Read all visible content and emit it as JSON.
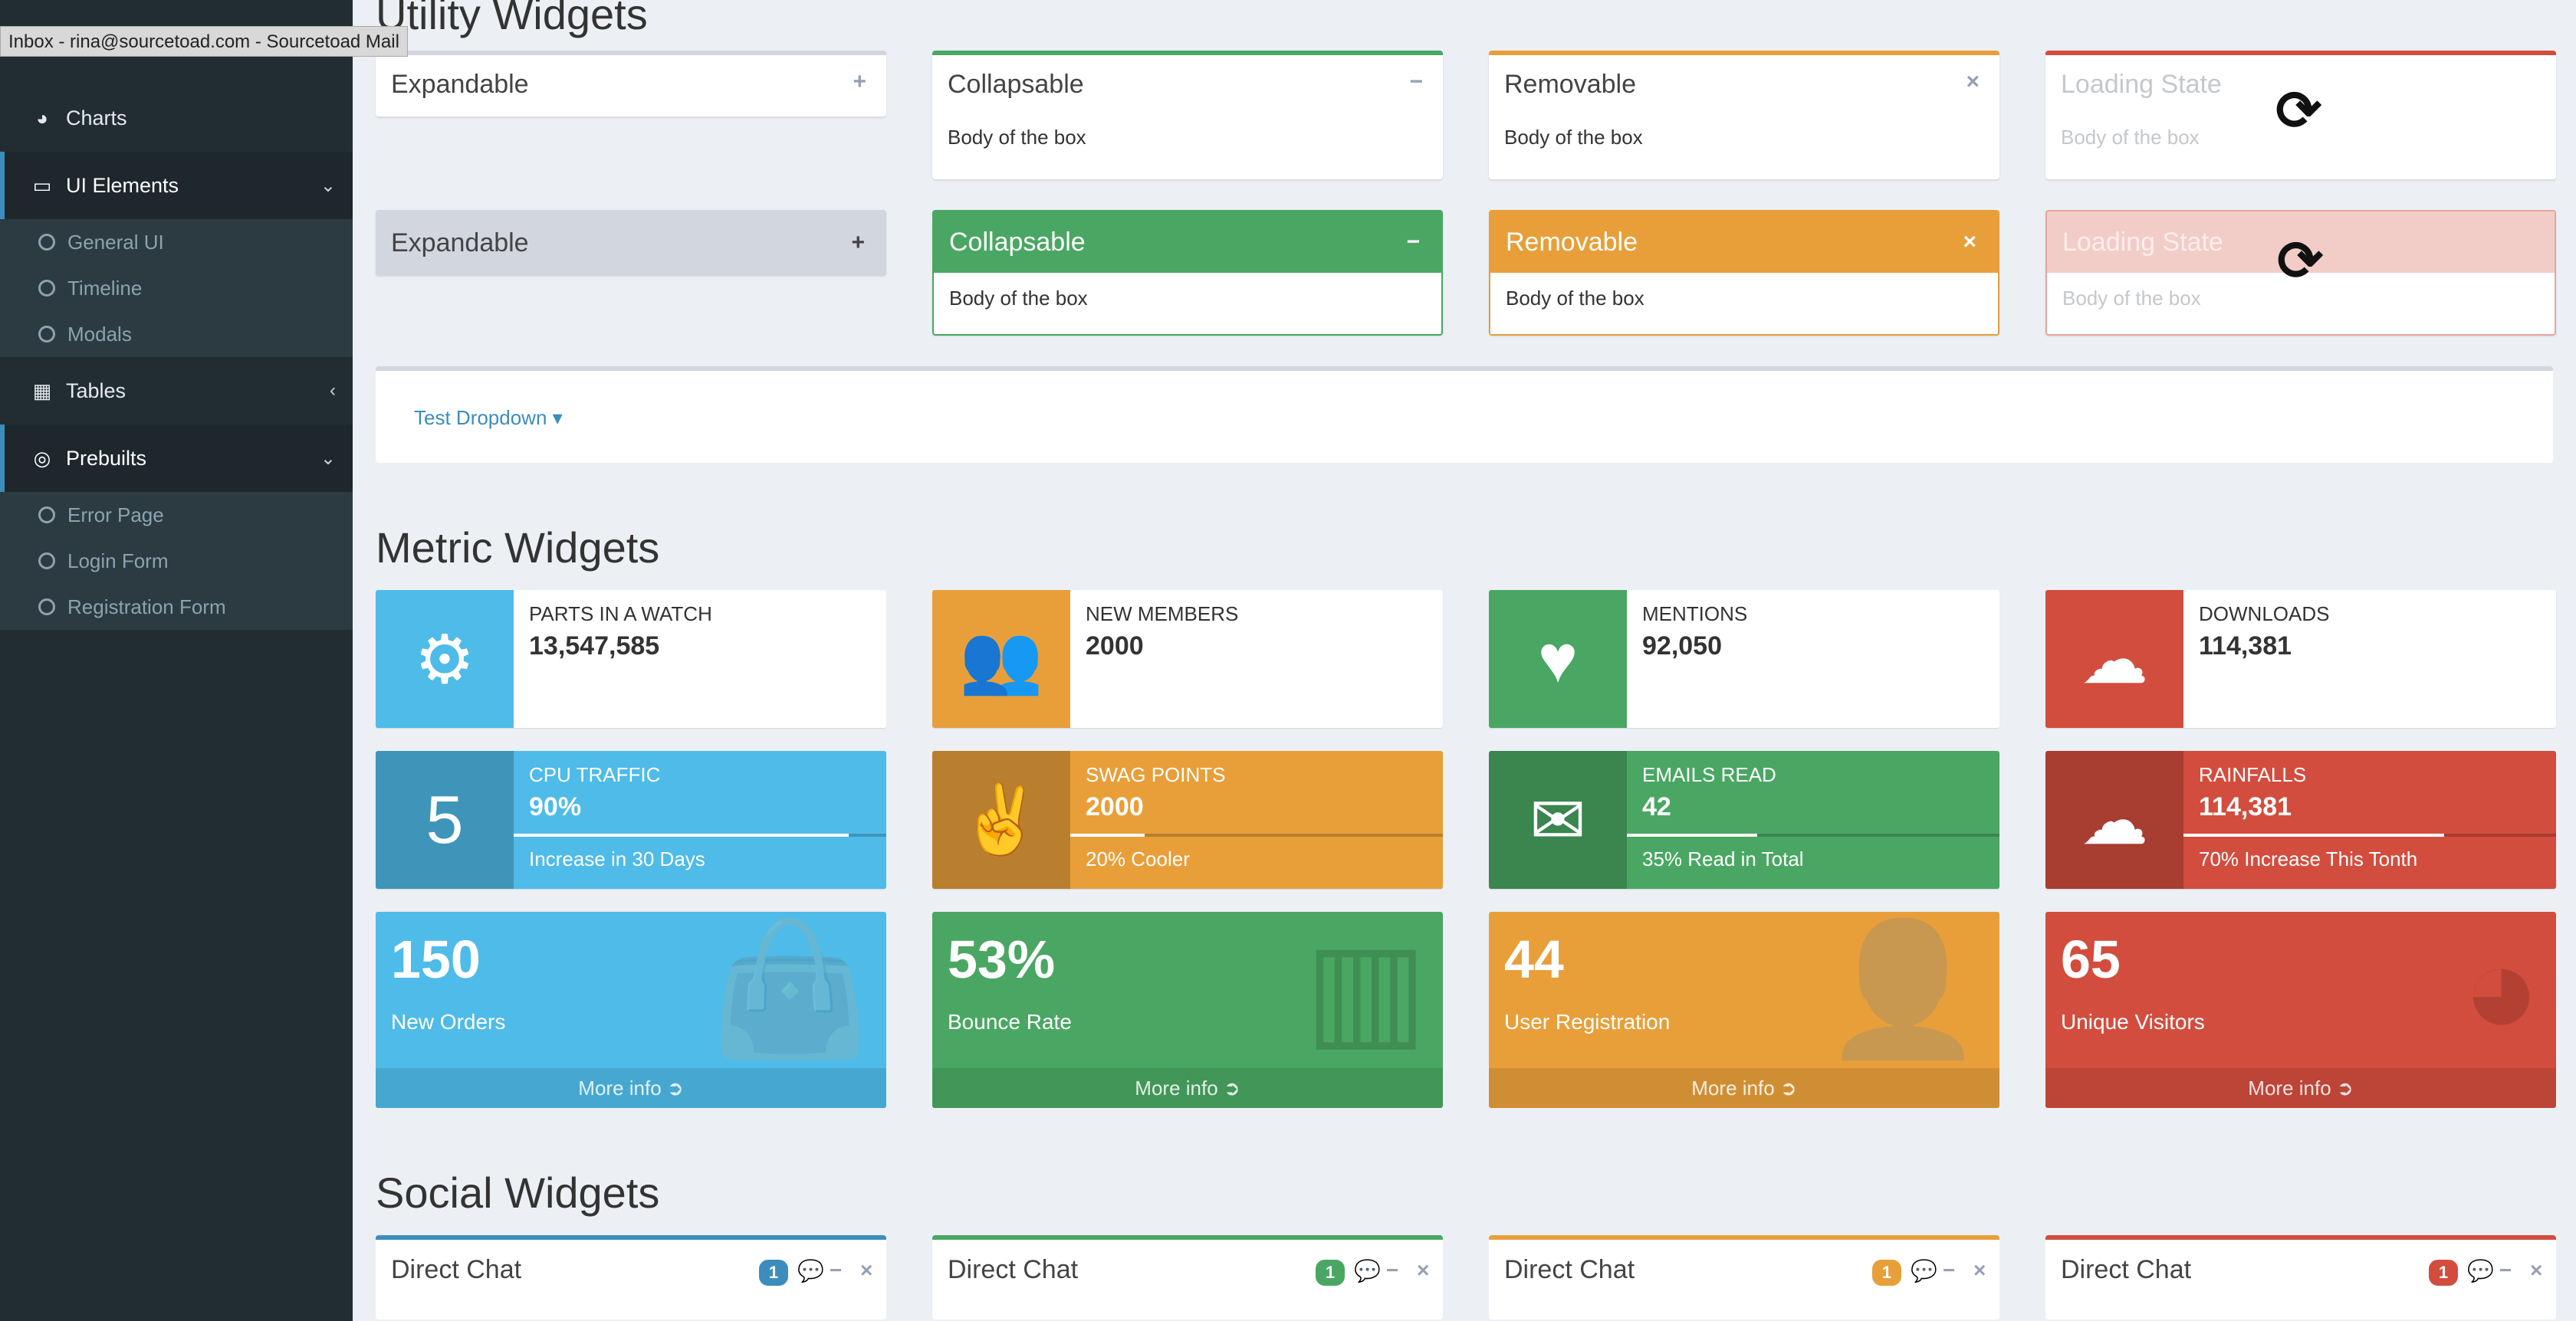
{
  "tooltip": "Inbox - rina@sourcetoad.com - Sourcetoad Mail",
  "sidebar": {
    "charts": "Charts",
    "ui_elements": "UI Elements",
    "ui_sub": [
      "General UI",
      "Timeline",
      "Modals"
    ],
    "tables": "Tables",
    "prebuilts": "Prebuilts",
    "prebuilt_sub": [
      "Error Page",
      "Login Form",
      "Registration Form"
    ]
  },
  "sections": {
    "utility": "Utility Widgets",
    "metric": "Metric Widgets",
    "social": "Social Widgets"
  },
  "utility": {
    "expandable": "Expandable",
    "collapsable": "Collapsable",
    "removable": "Removable",
    "loading": "Loading State",
    "body": "Body of the box",
    "dropdown": "Test Dropdown"
  },
  "colors": {
    "aqua": "#4fbbe8",
    "green": "#4aa763",
    "orange": "#e89f3a",
    "red": "#d24d3e",
    "blue": "#3c8dbc"
  },
  "info_boxes": [
    {
      "label": "PARTS IN A WATCH",
      "value": "13,547,585",
      "icon": "gear-icon"
    },
    {
      "label": "NEW MEMBERS",
      "value": "2000",
      "icon": "users-icon"
    },
    {
      "label": "MENTIONS",
      "value": "92,050",
      "icon": "heart-icon"
    },
    {
      "label": "DOWNLOADS",
      "value": "114,381",
      "icon": "cloud-download-icon"
    }
  ],
  "info_bg_boxes": [
    {
      "label": "CPU TRAFFIC",
      "value": "90%",
      "desc": "Increase in 30 Days",
      "progress": 0.9,
      "icon": "five-hundred-px-icon"
    },
    {
      "label": "SWAG POINTS",
      "value": "2000",
      "desc": "20% Cooler",
      "progress": 0.2,
      "icon": "victory-hand-icon"
    },
    {
      "label": "EMAILS READ",
      "value": "42",
      "desc": "35% Read in Total",
      "progress": 0.35,
      "icon": "envelope-icon"
    },
    {
      "label": "RAINFALLS",
      "value": "114,381",
      "desc": "70% Increase This Tonth",
      "progress": 0.7,
      "icon": "cloud-download-icon"
    }
  ],
  "small_boxes": [
    {
      "value": "150",
      "label": "New Orders",
      "footer": "More info",
      "icon": "shopping-bag-icon"
    },
    {
      "value": "53%",
      "label": "Bounce Rate",
      "footer": "More info",
      "icon": "bar-chart-icon"
    },
    {
      "value": "44",
      "label": "User Registration",
      "footer": "More info",
      "icon": "user-plus-icon"
    },
    {
      "value": "65",
      "label": "Unique Visitors",
      "footer": "More info",
      "icon": "pie-chart-icon"
    }
  ],
  "chats": [
    {
      "title": "Direct Chat",
      "badge": "1"
    },
    {
      "title": "Direct Chat",
      "badge": "1"
    },
    {
      "title": "Direct Chat",
      "badge": "1"
    },
    {
      "title": "Direct Chat",
      "badge": "1"
    }
  ]
}
